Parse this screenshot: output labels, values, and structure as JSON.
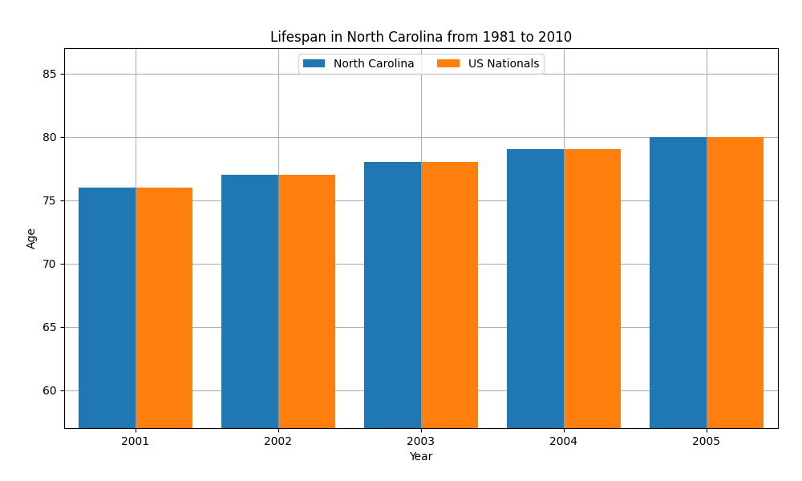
{
  "chart_data": {
    "type": "bar",
    "title": "Lifespan in North Carolina from 1981 to 2010",
    "x_label": "Year",
    "y_label": "Age",
    "categories": [
      "2001",
      "2002",
      "2003",
      "2004",
      "2005"
    ],
    "series": [
      {
        "name": "North Carolina",
        "values": [
          76,
          77,
          78,
          79,
          80
        ]
      },
      {
        "name": "US Nationals",
        "values": [
          76,
          77,
          78,
          79,
          80
        ]
      }
    ],
    "ylim": [
      57,
      87
    ],
    "yticks": [
      60,
      65,
      70,
      75,
      80,
      85
    ],
    "grid": true,
    "legend": "upper center"
  }
}
